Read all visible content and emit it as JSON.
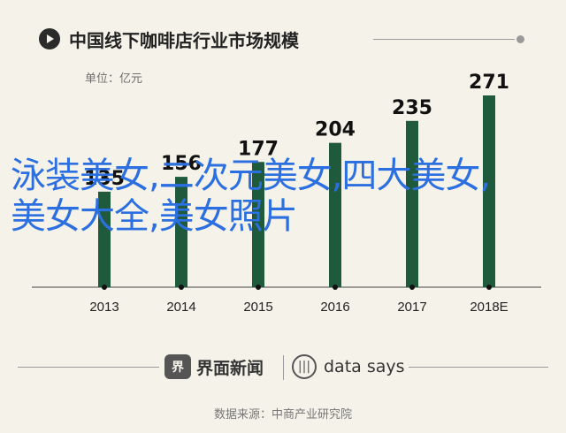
{
  "title": "中国线下咖啡店行业市场规模",
  "unit": "单位：亿元",
  "overlay_text": "泳装美女,二次元美女,四大美女,美女大全,美女照片",
  "colors": {
    "bar": "#1f5a3c",
    "background": "#f5f2e9",
    "overlay": "#2b6fe0"
  },
  "chart_data": {
    "type": "bar",
    "categories": [
      "2013",
      "2014",
      "2015",
      "2016",
      "2017",
      "2018E"
    ],
    "values": [
      135,
      156,
      177,
      204,
      235,
      271
    ],
    "title": "中国线下咖啡店行业市场规模",
    "xlabel": "",
    "ylabel": "单位：亿元",
    "ylim": [
      0,
      280
    ],
    "grid": false,
    "legend": "none"
  },
  "footer": {
    "brand1_logo": "界",
    "brand1": "界面新闻",
    "brand2_logo": "|||",
    "brand2": "data says",
    "source": "数据来源：中商产业研究院"
  }
}
